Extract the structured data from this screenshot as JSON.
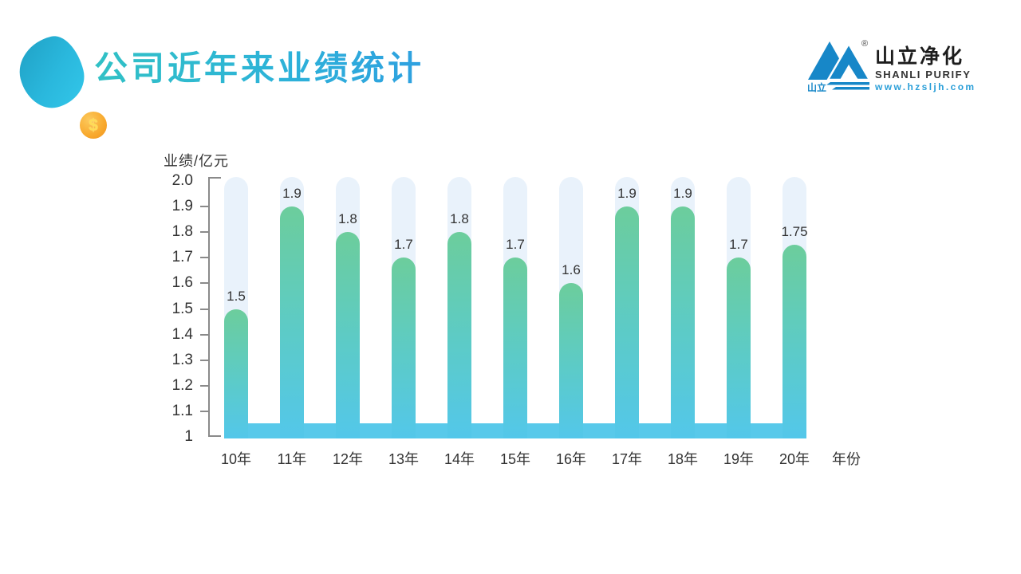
{
  "slide": {
    "title": "公司近年来业绩统计",
    "coin_symbol": "$"
  },
  "logo": {
    "icon_label": "山立",
    "registered_mark": "®",
    "name_cn": "山立净化",
    "name_en": "SHANLI PURIFY",
    "website": "www.hzsljh.com",
    "brand_blue": "#1787c8"
  },
  "chart_data": {
    "type": "bar",
    "title": "公司近年来业绩统计",
    "ylabel": "业绩/亿元",
    "xlabel": "年份",
    "categories": [
      "10年",
      "11年",
      "12年",
      "13年",
      "14年",
      "15年",
      "16年",
      "17年",
      "18年",
      "19年",
      "20年"
    ],
    "values": [
      1.5,
      1.9,
      1.8,
      1.7,
      1.8,
      1.7,
      1.6,
      1.9,
      1.9,
      1.7,
      1.75
    ],
    "value_labels": [
      "1.5",
      "1.9",
      "1.8",
      "1.7",
      "1.8",
      "1.7",
      "1.6",
      "1.9",
      "1.9",
      "1.7",
      "1.75"
    ],
    "ylim": [
      1,
      2
    ],
    "ytick_labels": [
      "2.0",
      "1.9",
      "1.8",
      "1.7",
      "1.6",
      "1.5",
      "1.4",
      "1.3",
      "1.2",
      "1.1",
      "1"
    ],
    "grid": false,
    "legend": "none",
    "colors": {
      "bar_top": "#6ccd9c",
      "bar_bottom": "#53c7ea",
      "track": "#e9f2fb",
      "baseline_band": "#58c9ea",
      "axis": "#8a8a8a",
      "text": "#333333"
    }
  }
}
